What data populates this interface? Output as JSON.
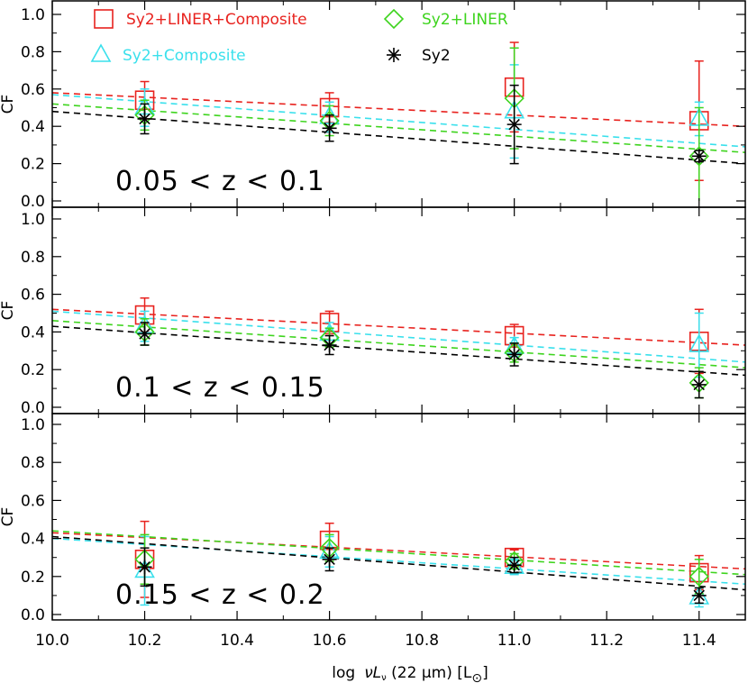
{
  "chart_data": {
    "type": "scatter",
    "xlabel_prefix": "log",
    "xlabel_main": "νL",
    "xlabel_sub": "ν",
    "xlabel_suffix": " (22 μm) [L",
    "xlabel_sun": "⊙",
    "xlabel_close": "]",
    "ylabel": "CF",
    "xlim": [
      10.0,
      11.5
    ],
    "ylim": [
      0.0,
      1.0
    ],
    "x_ticks": [
      "10.0",
      "10.2",
      "10.4",
      "10.6",
      "10.8",
      "11.0",
      "11.2",
      "11.4"
    ],
    "y_ticks": [
      "0.0",
      "0.2",
      "0.4",
      "0.6",
      "0.8",
      "1.0"
    ],
    "colors": {
      "sy2_liner_comp": "#e8221e",
      "sy2_liner": "#3ed41e",
      "sy2_comp": "#3ae0ec",
      "sy2": "#000000"
    },
    "legend": [
      {
        "key": "sy2_liner_comp",
        "label": "Sy2+LINER+Composite",
        "marker": "square"
      },
      {
        "key": "sy2_liner",
        "label": "Sy2+LINER",
        "marker": "diamond"
      },
      {
        "key": "sy2_comp",
        "label": "Sy2+Composite",
        "marker": "triangle"
      },
      {
        "key": "sy2",
        "label": "Sy2",
        "marker": "asterisk"
      }
    ],
    "panels": [
      {
        "label": "0.05 < z < 0.1",
        "series": [
          {
            "key": "sy2_liner_comp",
            "marker": "square",
            "x": [
              10.2,
              10.6,
              11.0,
              11.4
            ],
            "y": [
              0.54,
              0.5,
              0.61,
              0.43
            ],
            "err_lo": [
              0.1,
              0.08,
              0.24,
              0.32
            ],
            "err_hi": [
              0.1,
              0.08,
              0.24,
              0.32
            ],
            "fit": [
              0.58,
              0.4
            ]
          },
          {
            "key": "sy2_comp",
            "marker": "triangle",
            "x": [
              10.2,
              10.6,
              11.0,
              11.4
            ],
            "y": [
              0.5,
              0.45,
              0.48,
              0.44
            ],
            "err_lo": [
              0.1,
              0.08,
              0.25,
              0.09
            ],
            "err_hi": [
              0.1,
              0.08,
              0.25,
              0.09
            ],
            "fit": [
              0.57,
              0.29
            ]
          },
          {
            "key": "sy2_liner",
            "marker": "diamond",
            "x": [
              10.2,
              10.6,
              11.0,
              11.4
            ],
            "y": [
              0.46,
              0.43,
              0.55,
              0.24
            ],
            "err_lo": [
              0.08,
              0.08,
              0.27,
              0.26
            ],
            "err_hi": [
              0.08,
              0.08,
              0.27,
              0.26
            ],
            "fit": [
              0.52,
              0.26
            ]
          },
          {
            "key": "sy2",
            "marker": "asterisk",
            "x": [
              10.2,
              10.6,
              11.0,
              11.4
            ],
            "y": [
              0.44,
              0.39,
              0.41,
              0.24
            ],
            "err_lo": [
              0.08,
              0.07,
              0.21,
              0.03
            ],
            "err_hi": [
              0.08,
              0.07,
              0.21,
              0.03
            ],
            "fit": [
              0.48,
              0.2
            ]
          }
        ]
      },
      {
        "label": "0.1 < z < 0.15",
        "series": [
          {
            "key": "sy2_liner_comp",
            "marker": "square",
            "x": [
              10.2,
              10.6,
              11.0,
              11.4
            ],
            "y": [
              0.49,
              0.45,
              0.38,
              0.35
            ],
            "err_lo": [
              0.09,
              0.06,
              0.06,
              0.17
            ],
            "err_hi": [
              0.09,
              0.06,
              0.06,
              0.17
            ],
            "fit": [
              0.52,
              0.33
            ]
          },
          {
            "key": "sy2_comp",
            "marker": "triangle",
            "x": [
              10.2,
              10.6,
              11.0,
              11.4
            ],
            "y": [
              0.43,
              0.39,
              0.32,
              0.33
            ],
            "err_lo": [
              0.08,
              0.06,
              0.05,
              0.17
            ],
            "err_hi": [
              0.08,
              0.06,
              0.05,
              0.17
            ],
            "fit": [
              0.51,
              0.24
            ]
          },
          {
            "key": "sy2_liner",
            "marker": "diamond",
            "x": [
              10.2,
              10.6,
              11.0,
              11.4
            ],
            "y": [
              0.4,
              0.37,
              0.29,
              0.13
            ],
            "err_lo": [
              0.07,
              0.05,
              0.05,
              0.08
            ],
            "err_hi": [
              0.07,
              0.05,
              0.05,
              0.08
            ],
            "fit": [
              0.46,
              0.21
            ]
          },
          {
            "key": "sy2",
            "marker": "asterisk",
            "x": [
              10.2,
              10.6,
              11.0,
              11.4
            ],
            "y": [
              0.39,
              0.33,
              0.28,
              0.12
            ],
            "err_lo": [
              0.06,
              0.05,
              0.06,
              0.07
            ],
            "err_hi": [
              0.06,
              0.05,
              0.06,
              0.07
            ],
            "fit": [
              0.43,
              0.17
            ]
          }
        ]
      },
      {
        "label": "0.15 < z < 0.2",
        "series": [
          {
            "key": "sy2_liner_comp",
            "marker": "square",
            "x": [
              10.2,
              10.6,
              11.0,
              11.4
            ],
            "y": [
              0.29,
              0.39,
              0.3,
              0.22
            ],
            "err_lo": [
              0.2,
              0.09,
              0.04,
              0.09
            ],
            "err_hi": [
              0.2,
              0.09,
              0.04,
              0.09
            ],
            "fit": [
              0.43,
              0.24
            ]
          },
          {
            "key": "sy2_comp",
            "marker": "triangle",
            "x": [
              10.2,
              10.6,
              11.0,
              11.4
            ],
            "y": [
              0.23,
              0.33,
              0.25,
              0.09
            ],
            "err_lo": [
              0.18,
              0.08,
              0.04,
              0.05
            ],
            "err_hi": [
              0.18,
              0.08,
              0.04,
              0.05
            ],
            "fit": [
              0.4,
              0.16
            ]
          },
          {
            "key": "sy2_liner",
            "marker": "diamond",
            "x": [
              10.2,
              10.6,
              11.0,
              11.4
            ],
            "y": [
              0.29,
              0.35,
              0.28,
              0.2
            ],
            "err_lo": [
              0.13,
              0.07,
              0.04,
              0.09
            ],
            "err_hi": [
              0.13,
              0.07,
              0.04,
              0.09
            ],
            "fit": [
              0.44,
              0.21
            ]
          },
          {
            "key": "sy2",
            "marker": "asterisk",
            "x": [
              10.2,
              10.6,
              11.0,
              11.4
            ],
            "y": [
              0.25,
              0.29,
              0.26,
              0.1
            ],
            "err_lo": [
              0.1,
              0.06,
              0.04,
              0.04
            ],
            "err_hi": [
              0.1,
              0.06,
              0.04,
              0.04
            ],
            "fit": [
              0.41,
              0.13
            ]
          }
        ]
      }
    ]
  }
}
